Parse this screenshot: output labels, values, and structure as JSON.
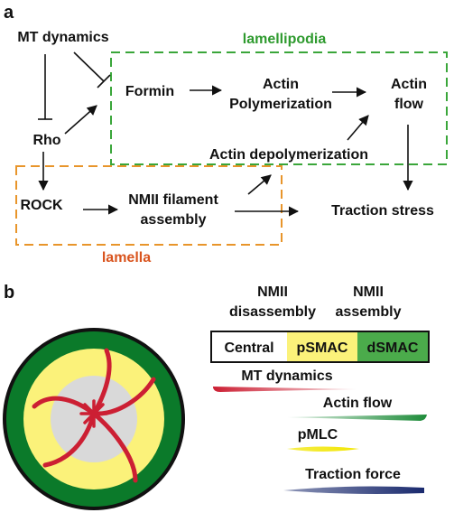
{
  "panel_a": {
    "label": "a",
    "lamellipodia_label": "lamellipodia",
    "lamella_label": "lamella",
    "nodes": {
      "mt_dynamics": "MT dynamics",
      "rho": "Rho",
      "rock": "ROCK",
      "formin": "Formin",
      "actin_polymerization_line1": "Actin",
      "actin_polymerization_line2": "Polymerization",
      "actin_flow_line1": "Actin",
      "actin_flow_line2": "flow",
      "actin_depolymerization": "Actin depolymerization",
      "nmii_filament_line1": "NMII filament",
      "nmii_filament_line2": "assembly",
      "traction_stress": "Traction stress"
    },
    "colors": {
      "lamellipodia": "#3aa63a",
      "lamella": "#e8952b",
      "lamella_text": "#d9541e",
      "lamellipodia_text": "#2e9a2e"
    }
  },
  "panel_b": {
    "label": "b",
    "nmii_disassembly_line1": "NMII",
    "nmii_disassembly_line2": "disassembly",
    "nmii_assembly_line1": "NMII",
    "nmii_assembly_line2": "assembly",
    "zones": {
      "central": "Central",
      "psmac": "pSMAC",
      "dsmac": "dSMAC"
    },
    "gradients": {
      "mt_dynamics": "MT dynamics",
      "actin_flow": "Actin flow",
      "pmlc": "pMLC",
      "traction_force": "Traction force"
    },
    "colors": {
      "dsmac": "#2e9a3a",
      "psmac": "#fbf27a",
      "central": "#ffffff",
      "outer_ring": "#0b7a2a",
      "central_disc": "#d9d9d9",
      "microtubules": "#cc1f33",
      "mt_gradient": "#cc1f33",
      "actin_flow_gradient": "#1e8c3a",
      "pmlc_gradient": "#f2e600",
      "traction_gradient": "#1a2a6e"
    }
  }
}
